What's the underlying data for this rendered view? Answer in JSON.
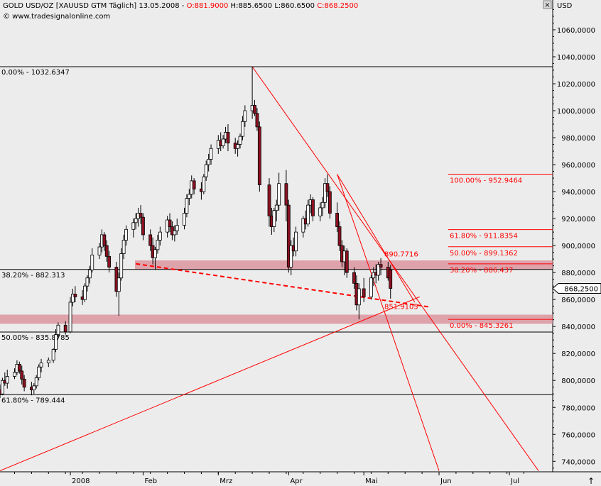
{
  "header": {
    "title": "GOLD USD/OZ [XAUUSD GTM  Täglich] 13.05.2008 - ",
    "open": "O:881.9000",
    "high": " H:885.6500",
    "low": " L:860.6500",
    "close": " C:868.2500",
    "copyright": "© www.tradesignalonline.com",
    "currency": "USD",
    "close_color": "#ff0000"
  },
  "controls": {
    "close_glyph": "×",
    "scroll_glyph": "↑"
  },
  "colors": {
    "background": "#ececec",
    "line": "#ff0000",
    "zone": "#d98a96",
    "candle_up": "#ffffff",
    "candle_down": "#8b1020",
    "axis_bg": "#ececec"
  },
  "chart_data": {
    "type": "candlestick",
    "ylim": [
      730,
      1080
    ],
    "y_ticks": [
      "1060,0000",
      "1040,0000",
      "1020,0000",
      "1000,0000",
      "980,0000",
      "960,0000",
      "940,0000",
      "920,0000",
      "900,0000",
      "880,0000",
      "860,0000",
      "840,0000",
      "820,0000",
      "800,0000",
      "780,0000",
      "760,0000",
      "740,0000"
    ],
    "y_tick_values": [
      1060,
      1040,
      1020,
      1000,
      980,
      960,
      940,
      920,
      900,
      880,
      860,
      840,
      820,
      800,
      780,
      760,
      740
    ],
    "last_price": {
      "label": "868,2500",
      "value": 868.25
    },
    "x_labels": [
      "2008",
      "Feb",
      "Mrz",
      "Apr",
      "Mai",
      "Jun",
      "Jul"
    ],
    "x_label_dates": [
      "2008-01-02",
      "2008-02-01",
      "2008-03-03",
      "2008-04-01",
      "2008-05-02",
      "2008-06-02",
      "2008-07-01"
    ],
    "horizontal_levels": [
      {
        "label": "0.00% - 1032.6347",
        "value": 1032.6347,
        "color": "black"
      },
      {
        "label": "38.20% - 882.313",
        "value": 882.313,
        "color": "black"
      },
      {
        "label": "50.00% - 835.8785",
        "value": 835.8785,
        "color": "black"
      },
      {
        "label": "61.80% - 789.444",
        "value": 789.444,
        "color": "black"
      }
    ],
    "fib_levels_right": [
      {
        "label": "100.00% - 952.9464",
        "value": 952.9464
      },
      {
        "label": "61.80% - 911.8354",
        "value": 911.8354
      },
      {
        "label": "50.00% - 899.1362",
        "value": 899.1362
      },
      {
        "label": "38.20% - 886.437",
        "value": 886.437
      },
      {
        "label": "0.00% - 845.3261",
        "value": 845.3261
      }
    ],
    "annotations": [
      {
        "label": "890.7716",
        "value": 890.7716
      },
      {
        "label": "851.9105",
        "value": 851.9105
      }
    ],
    "zones": [
      {
        "from": 882.313,
        "to": 889.0
      },
      {
        "from": 842.0,
        "to": 848.8
      }
    ],
    "trendlines": [
      {
        "from": {
          "date": "2007-12-04",
          "price": 733
        },
        "to": {
          "date": "2008-05-25",
          "price": 862
        },
        "style": "solid"
      },
      {
        "from": {
          "date": "2008-03-17",
          "price": 1032.63
        },
        "to": {
          "date": "2008-07-13",
          "price": 733
        },
        "style": "solid"
      },
      {
        "from": {
          "date": "2008-04-21",
          "price": 952.9
        },
        "to": {
          "date": "2008-05-23",
          "price": 858
        },
        "style": "solid"
      },
      {
        "from": {
          "date": "2008-04-21",
          "price": 952.9
        },
        "to": {
          "date": "2008-06-02",
          "price": 733
        },
        "style": "solid"
      },
      {
        "from": {
          "date": "2008-01-29",
          "price": 886.5
        },
        "to": {
          "date": "2008-05-29",
          "price": 854.5
        },
        "style": "dashed"
      }
    ],
    "candles": [
      [
        "2007-12-04",
        793,
        797,
        787,
        790
      ],
      [
        "2007-12-05",
        790,
        802,
        789,
        800
      ],
      [
        "2007-12-06",
        800,
        806,
        796,
        798
      ],
      [
        "2007-12-07",
        798,
        808,
        794,
        803
      ],
      [
        "2007-12-10",
        803,
        809,
        801,
        806
      ],
      [
        "2007-12-11",
        806,
        815,
        804,
        812
      ],
      [
        "2007-12-12",
        812,
        814,
        805,
        807
      ],
      [
        "2007-12-13",
        807,
        811,
        797,
        801
      ],
      [
        "2007-12-14",
        801,
        804,
        792,
        795
      ],
      [
        "2007-12-17",
        795,
        799,
        789,
        793
      ],
      [
        "2007-12-18",
        793,
        798,
        790,
        796
      ],
      [
        "2007-12-19",
        796,
        804,
        794,
        802
      ],
      [
        "2007-12-20",
        802,
        812,
        800,
        810
      ],
      [
        "2007-12-21",
        810,
        816,
        806,
        813
      ],
      [
        "2007-12-24",
        813,
        817,
        810,
        815
      ],
      [
        "2007-12-26",
        815,
        824,
        813,
        823
      ],
      [
        "2007-12-27",
        823,
        838,
        821,
        834
      ],
      [
        "2007-12-28",
        834,
        843,
        832,
        841
      ],
      [
        "2007-12-31",
        841,
        844,
        834,
        836
      ],
      [
        "2008-01-02",
        836,
        862,
        835,
        858
      ],
      [
        "2008-01-03",
        858,
        868,
        855,
        864
      ],
      [
        "2008-01-04",
        864,
        870,
        858,
        862
      ],
      [
        "2008-01-07",
        862,
        867,
        856,
        860
      ],
      [
        "2008-01-08",
        860,
        872,
        858,
        870
      ],
      [
        "2008-01-09",
        870,
        878,
        866,
        876
      ],
      [
        "2008-01-10",
        876,
        885,
        872,
        882
      ],
      [
        "2008-01-11",
        882,
        898,
        880,
        893
      ],
      [
        "2008-01-14",
        893,
        902,
        890,
        899
      ],
      [
        "2008-01-15",
        899,
        912,
        895,
        908
      ],
      [
        "2008-01-16",
        908,
        910,
        896,
        900
      ],
      [
        "2008-01-17",
        900,
        904,
        888,
        892
      ],
      [
        "2008-01-18",
        892,
        896,
        880,
        884
      ],
      [
        "2008-01-21",
        884,
        888,
        862,
        866
      ],
      [
        "2008-01-22",
        866,
        880,
        848,
        876
      ],
      [
        "2008-01-23",
        876,
        898,
        874,
        894
      ],
      [
        "2008-01-24",
        894,
        908,
        890,
        904
      ],
      [
        "2008-01-25",
        904,
        915,
        900,
        912
      ],
      [
        "2008-01-28",
        912,
        920,
        906,
        917
      ],
      [
        "2008-01-29",
        917,
        924,
        912,
        920
      ],
      [
        "2008-01-30",
        920,
        928,
        914,
        924
      ],
      [
        "2008-01-31",
        924,
        930,
        916,
        921
      ],
      [
        "2008-02-01",
        921,
        924,
        904,
        908
      ],
      [
        "2008-02-04",
        908,
        912,
        896,
        900
      ],
      [
        "2008-02-05",
        900,
        906,
        886,
        891
      ],
      [
        "2008-02-06",
        891,
        899,
        882,
        897
      ],
      [
        "2008-02-07",
        897,
        908,
        894,
        904
      ],
      [
        "2008-02-08",
        904,
        914,
        900,
        910
      ],
      [
        "2008-02-11",
        910,
        922,
        906,
        919
      ],
      [
        "2008-02-12",
        919,
        924,
        910,
        914
      ],
      [
        "2008-02-13",
        914,
        918,
        904,
        908
      ],
      [
        "2008-02-14",
        908,
        915,
        903,
        911
      ],
      [
        "2008-02-15",
        911,
        920,
        908,
        915
      ],
      [
        "2008-02-18",
        915,
        928,
        912,
        924
      ],
      [
        "2008-02-19",
        924,
        938,
        921,
        935
      ],
      [
        "2008-02-20",
        935,
        942,
        930,
        938
      ],
      [
        "2008-02-21",
        938,
        952,
        935,
        948
      ],
      [
        "2008-02-22",
        948,
        950,
        938,
        942
      ],
      [
        "2008-02-25",
        942,
        947,
        934,
        940
      ],
      [
        "2008-02-26",
        940,
        953,
        938,
        951
      ],
      [
        "2008-02-27",
        951,
        963,
        948,
        960
      ],
      [
        "2008-02-28",
        960,
        968,
        955,
        964
      ],
      [
        "2008-02-29",
        964,
        975,
        960,
        972
      ],
      [
        "2008-03-03",
        972,
        982,
        968,
        978
      ],
      [
        "2008-03-04",
        978,
        984,
        970,
        974
      ],
      [
        "2008-03-05",
        974,
        982,
        972,
        979
      ],
      [
        "2008-03-06",
        979,
        988,
        976,
        984
      ],
      [
        "2008-03-07",
        984,
        990,
        970,
        976
      ],
      [
        "2008-03-10",
        976,
        980,
        968,
        972
      ],
      [
        "2008-03-11",
        972,
        978,
        966,
        975
      ],
      [
        "2008-03-12",
        975,
        983,
        972,
        981
      ],
      [
        "2008-03-13",
        981,
        996,
        978,
        992
      ],
      [
        "2008-03-14",
        992,
        1004,
        988,
        1000
      ],
      [
        "2008-03-17",
        1000,
        1032.63,
        994,
        1004
      ],
      [
        "2008-03-18",
        1004,
        1008,
        996,
        998
      ],
      [
        "2008-03-19",
        998,
        1002,
        985,
        988
      ],
      [
        "2008-03-20",
        988,
        992,
        940,
        945
      ],
      [
        "2008-03-24",
        945,
        950,
        914,
        922
      ],
      [
        "2008-03-25",
        922,
        928,
        908,
        914
      ],
      [
        "2008-03-26",
        914,
        928,
        910,
        926
      ],
      [
        "2008-03-27",
        926,
        934,
        918,
        930
      ],
      [
        "2008-03-28",
        930,
        954,
        926,
        946
      ],
      [
        "2008-03-31",
        946,
        956,
        918,
        930
      ],
      [
        "2008-04-01",
        930,
        934,
        880,
        884
      ],
      [
        "2008-04-02",
        884,
        904,
        878,
        900
      ],
      [
        "2008-04-03",
        900,
        906,
        892,
        896
      ],
      [
        "2008-04-04",
        896,
        914,
        892,
        910
      ],
      [
        "2008-04-07",
        910,
        922,
        906,
        920
      ],
      [
        "2008-04-08",
        920,
        926,
        912,
        916
      ],
      [
        "2008-04-09",
        916,
        934,
        914,
        930
      ],
      [
        "2008-04-10",
        930,
        938,
        924,
        934
      ],
      [
        "2008-04-11",
        934,
        936,
        918,
        922
      ],
      [
        "2008-04-14",
        922,
        932,
        918,
        928
      ],
      [
        "2008-04-15",
        928,
        936,
        922,
        932
      ],
      [
        "2008-04-16",
        932,
        950,
        928,
        946
      ],
      [
        "2008-04-17",
        946,
        952.9,
        936,
        940
      ],
      [
        "2008-04-18",
        940,
        944,
        920,
        924
      ],
      [
        "2008-04-21",
        924,
        932,
        910,
        914
      ],
      [
        "2008-04-22",
        914,
        918,
        896,
        900
      ],
      [
        "2008-04-23",
        900,
        904,
        884,
        888
      ],
      [
        "2008-04-24",
        888,
        900,
        878,
        896
      ],
      [
        "2008-04-25",
        896,
        898,
        876,
        880
      ],
      [
        "2008-04-28",
        880,
        884,
        868,
        872
      ],
      [
        "2008-04-29",
        872,
        878,
        852,
        856
      ],
      [
        "2008-04-30",
        856,
        872,
        845.3,
        868
      ],
      [
        "2008-05-02",
        868,
        876,
        858,
        862
      ],
      [
        "2008-05-05",
        862,
        878,
        860,
        876
      ],
      [
        "2008-05-06",
        876,
        884,
        870,
        880
      ],
      [
        "2008-05-07",
        880,
        886,
        872,
        878
      ],
      [
        "2008-05-08",
        878,
        888,
        874,
        886
      ],
      [
        "2008-05-09",
        886,
        890.7,
        878,
        884
      ],
      [
        "2008-05-12",
        884,
        888,
        874,
        876
      ],
      [
        "2008-05-13",
        881.9,
        885.65,
        860.65,
        868.25
      ]
    ]
  }
}
